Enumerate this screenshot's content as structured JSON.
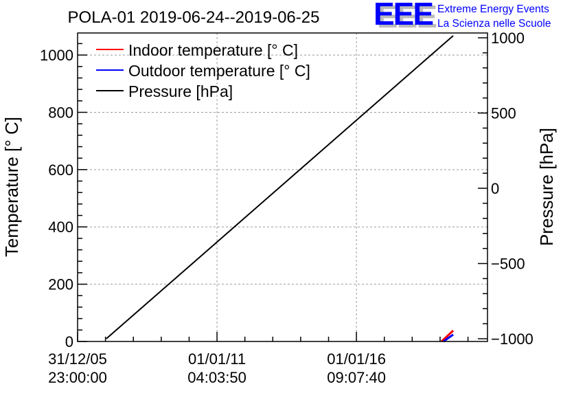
{
  "chart_data": {
    "type": "line",
    "title": "POLA-01 2019-06-24--2019-06-25",
    "ylabel": "Temperature [° C]",
    "y2label": "Pressure [hPa]",
    "xlabel": "",
    "xlim": [
      2006.0,
      2020.7
    ],
    "ylim": [
      0,
      1077
    ],
    "y2lim": [
      -1018,
      1032
    ],
    "x_ticks": [
      {
        "value": 2006.0,
        "date": "31/12/05",
        "time": "23:00:00"
      },
      {
        "value": 2011.0,
        "date": "01/01/11",
        "time": "04:03:50"
      },
      {
        "value": 2016.0,
        "date": "01/01/16",
        "time": "09:07:40"
      }
    ],
    "y_ticks": [
      0,
      200,
      400,
      600,
      800,
      1000
    ],
    "y2_ticks": [
      -1000,
      -500,
      0,
      500,
      1000
    ],
    "y2_tick_labels": [
      "−1000",
      "−500",
      "0",
      "500",
      "1000"
    ],
    "grid": true,
    "legend_position": "top-left",
    "series": [
      {
        "name": "Indoor temperature [° C]",
        "color": "#ff0000",
        "axis": "left",
        "x": [
          2019.05,
          2019.47
        ],
        "y": [
          0,
          38
        ]
      },
      {
        "name": "Outdoor temperature [° C]",
        "color": "#0000ff",
        "axis": "left",
        "x": [
          2019.12,
          2019.47
        ],
        "y": [
          0,
          24
        ]
      },
      {
        "name": "Pressure [hPa]",
        "color": "#000000",
        "axis": "right",
        "x": [
          2007.03,
          2019.47
        ],
        "y": [
          -1000,
          1014
        ]
      }
    ]
  },
  "logo": {
    "text": "EEE",
    "line1": "Extreme Energy Events",
    "line2": "La Scienza nelle Scuole",
    "color": "#0000ff"
  }
}
